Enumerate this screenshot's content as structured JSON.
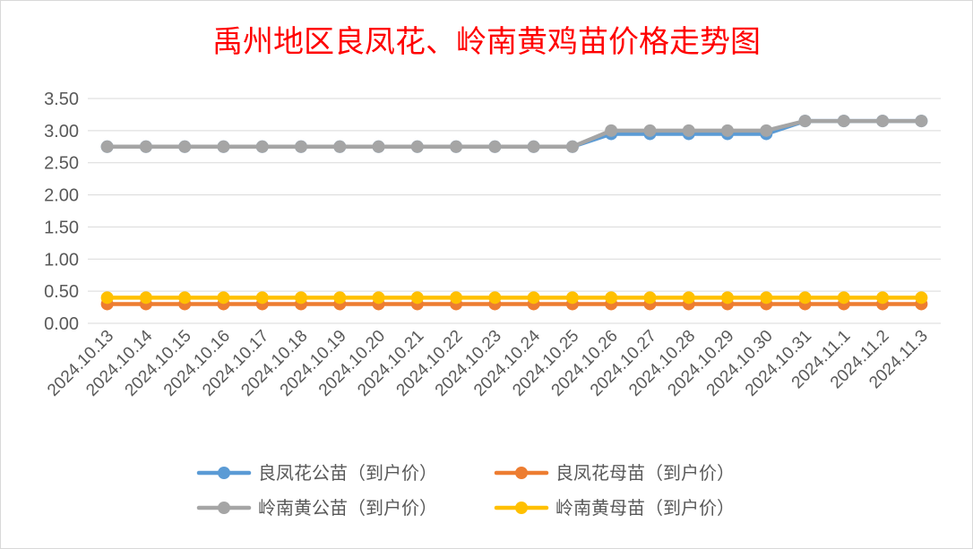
{
  "chart_data": {
    "type": "line",
    "title": "禹州地区良凤花、岭南黄鸡苗价格走势图",
    "xlabel": "",
    "ylabel": "",
    "ylim": [
      0,
      3.5
    ],
    "y_ticks": [
      "0.00",
      "0.50",
      "1.00",
      "1.50",
      "2.00",
      "2.50",
      "3.00",
      "3.50"
    ],
    "grid": true,
    "legend_position": "bottom",
    "categories": [
      "2024.10.13",
      "2024.10.14",
      "2024.10.15",
      "2024.10.16",
      "2024.10.17",
      "2024.10.18",
      "2024.10.19",
      "2024.10.20",
      "2024.10.21",
      "2024.10.22",
      "2024.10.23",
      "2024.10.24",
      "2024.10.25",
      "2024.10.26",
      "2024.10.27",
      "2024.10.28",
      "2024.10.29",
      "2024.10.30",
      "2024.10.31",
      "2024.11.1",
      "2024.11.2",
      "2024.11.3"
    ],
    "series": [
      {
        "name": "良凤花公苗（到户价）",
        "color": "#5b9bd5",
        "values": [
          2.75,
          2.75,
          2.75,
          2.75,
          2.75,
          2.75,
          2.75,
          2.75,
          2.75,
          2.75,
          2.75,
          2.75,
          2.75,
          2.95,
          2.95,
          2.95,
          2.95,
          2.95,
          3.15,
          3.15,
          3.15,
          3.15
        ]
      },
      {
        "name": "良凤花母苗（到户价）",
        "color": "#ed7d31",
        "values": [
          0.3,
          0.3,
          0.3,
          0.3,
          0.3,
          0.3,
          0.3,
          0.3,
          0.3,
          0.3,
          0.3,
          0.3,
          0.3,
          0.3,
          0.3,
          0.3,
          0.3,
          0.3,
          0.3,
          0.3,
          0.3,
          0.3
        ]
      },
      {
        "name": "岭南黄公苗（到户价）",
        "color": "#a5a5a5",
        "values": [
          2.75,
          2.75,
          2.75,
          2.75,
          2.75,
          2.75,
          2.75,
          2.75,
          2.75,
          2.75,
          2.75,
          2.75,
          2.75,
          3.0,
          3.0,
          3.0,
          3.0,
          3.0,
          3.15,
          3.15,
          3.15,
          3.15
        ]
      },
      {
        "name": "岭南黄母苗（到户价）",
        "color": "#ffc000",
        "values": [
          0.4,
          0.4,
          0.4,
          0.4,
          0.4,
          0.4,
          0.4,
          0.4,
          0.4,
          0.4,
          0.4,
          0.4,
          0.4,
          0.4,
          0.4,
          0.4,
          0.4,
          0.4,
          0.4,
          0.4,
          0.4,
          0.4
        ]
      }
    ]
  }
}
